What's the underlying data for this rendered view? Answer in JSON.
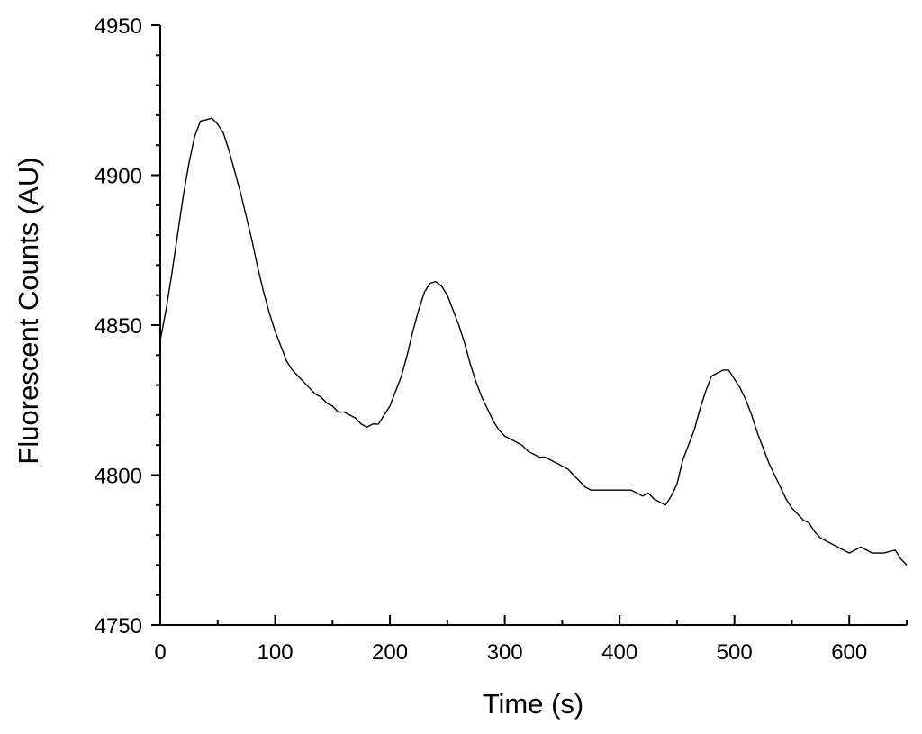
{
  "chart_data": {
    "type": "line",
    "title": "",
    "xlabel": "Time (s)",
    "ylabel": "Fluorescent Counts (AU)",
    "xlim": [
      0,
      650
    ],
    "ylim": [
      4750,
      4950
    ],
    "x_ticks": [
      0,
      100,
      200,
      300,
      400,
      500,
      600
    ],
    "y_ticks": [
      4750,
      4800,
      4850,
      4900,
      4950
    ],
    "x_tick_labels": [
      "0",
      "100",
      "200",
      "300",
      "400",
      "500",
      "600"
    ],
    "y_tick_labels": [
      "4750",
      "4800",
      "4850",
      "4900",
      "4950"
    ],
    "x_minor_step": 50,
    "y_minor_step": 10,
    "grid": false,
    "legend": "none",
    "line_color": "#000000",
    "series": [
      {
        "x": [
          0,
          5,
          10,
          15,
          20,
          25,
          30,
          35,
          40,
          45,
          50,
          55,
          60,
          65,
          70,
          75,
          80,
          85,
          90,
          95,
          100,
          105,
          110,
          115,
          120,
          125,
          130,
          135,
          140,
          145,
          150,
          155,
          160,
          165,
          170,
          175,
          180,
          185,
          190,
          195,
          200,
          205,
          210,
          215,
          220,
          225,
          230,
          235,
          240,
          245,
          250,
          255,
          260,
          265,
          270,
          275,
          280,
          285,
          290,
          295,
          300,
          305,
          310,
          315,
          320,
          325,
          330,
          335,
          340,
          345,
          350,
          355,
          360,
          365,
          370,
          375,
          380,
          385,
          390,
          395,
          400,
          405,
          410,
          415,
          420,
          425,
          430,
          435,
          440,
          445,
          450,
          455,
          460,
          465,
          470,
          475,
          480,
          485,
          490,
          495,
          500,
          505,
          510,
          515,
          520,
          525,
          530,
          535,
          540,
          545,
          550,
          555,
          560,
          565,
          570,
          575,
          580,
          585,
          590,
          595,
          600,
          605,
          610,
          615,
          620,
          625,
          630,
          635,
          640,
          645,
          650
        ],
        "values": [
          4845,
          4855,
          4867,
          4880,
          4893,
          4904,
          4913,
          4918,
          4918.5,
          4919,
          4917,
          4914,
          4908,
          4901,
          4894,
          4886,
          4878,
          4869,
          4861,
          4854,
          4848,
          4843,
          4838,
          4835,
          4833,
          4831,
          4829,
          4827,
          4826,
          4824,
          4823,
          4821,
          4821,
          4820,
          4819,
          4817,
          4816,
          4817,
          4817,
          4820,
          4823,
          4828,
          4833,
          4840,
          4848,
          4855,
          4861,
          4864,
          4864.5,
          4863,
          4860,
          4855,
          4850,
          4844,
          4837,
          4831,
          4826,
          4822,
          4818,
          4815,
          4813,
          4812,
          4811,
          4810,
          4808,
          4807,
          4806,
          4806,
          4805,
          4804,
          4803,
          4802,
          4800,
          4798,
          4796,
          4795,
          4795,
          4795,
          4795,
          4795,
          4795,
          4795,
          4795,
          4794,
          4793,
          4794,
          4792,
          4791,
          4790,
          4793,
          4797,
          4805,
          4810,
          4815,
          4822,
          4828,
          4833,
          4834,
          4835,
          4835,
          4832,
          4829,
          4825,
          4820,
          4814,
          4809,
          4804,
          4800,
          4796,
          4792,
          4789,
          4787,
          4785,
          4784,
          4781,
          4779,
          4778,
          4777,
          4776,
          4775,
          4774,
          4775,
          4776,
          4775,
          4774,
          4774,
          4774,
          4774.5,
          4775,
          4772,
          4770
        ]
      }
    ]
  }
}
